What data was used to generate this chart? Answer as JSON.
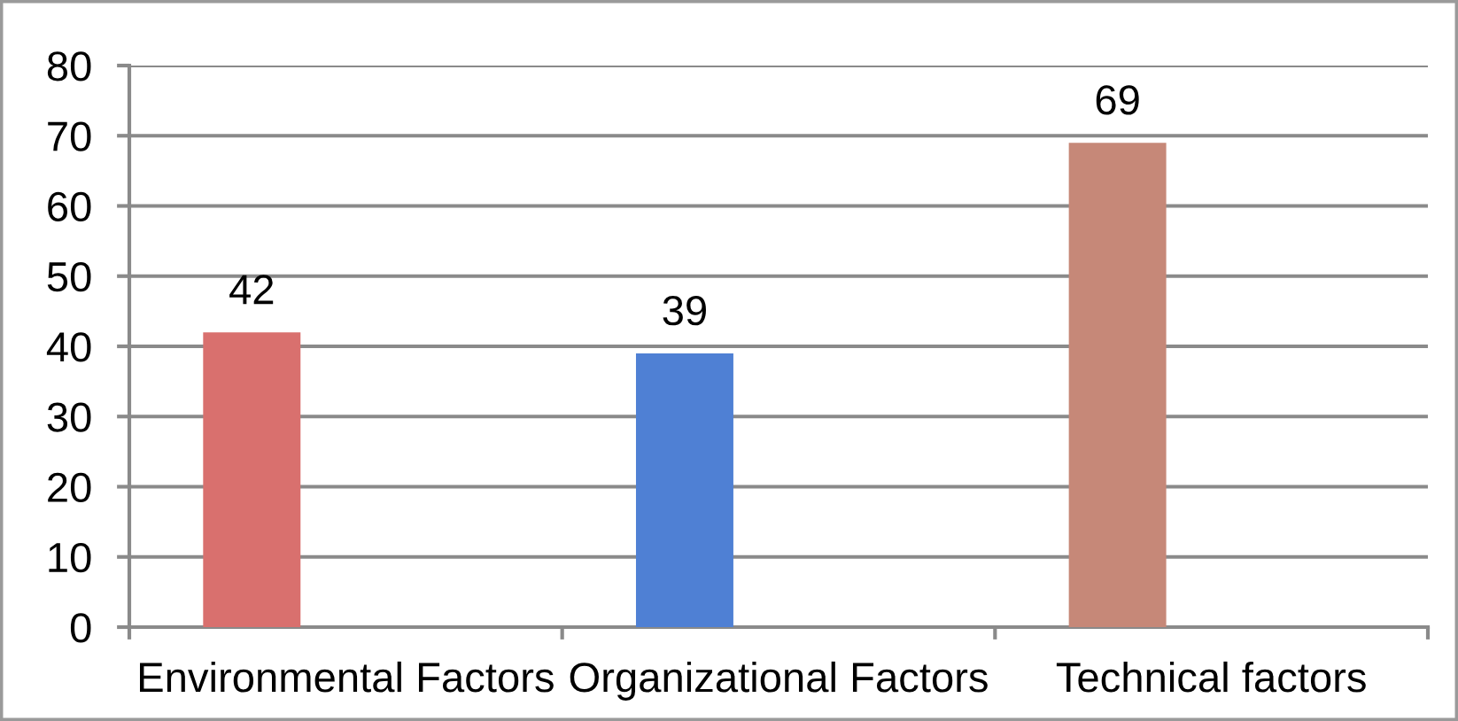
{
  "chart_data": {
    "type": "bar",
    "categories": [
      "Environmental Factors",
      "Organizational Factors",
      "Technical factors"
    ],
    "values": [
      42,
      39,
      69
    ],
    "colors": [
      "#d9706e",
      "#4f80d4",
      "#c68878"
    ],
    "ylim": [
      0,
      80
    ],
    "yticks": [
      0,
      10,
      20,
      30,
      40,
      50,
      60,
      70,
      80
    ],
    "grid": "y",
    "data_labels": true
  }
}
